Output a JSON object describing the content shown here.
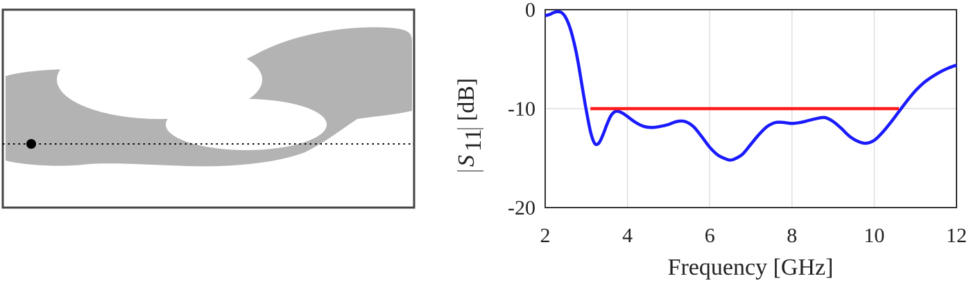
{
  "layout_panel": {
    "description_icon": "antenna-geometry-icon",
    "fill_color": "#b3b3b3",
    "background_color": "#ffffff",
    "border_color": "#444444",
    "feed_point_color": "#000000"
  },
  "chart_data": {
    "type": "line",
    "title": "",
    "xlabel": "Frequency [GHz]",
    "ylabel": {
      "symbol": "S",
      "subscript": "11",
      "unit": "[dB]"
    },
    "xlim": [
      2,
      12
    ],
    "ylim": [
      -20,
      0
    ],
    "x_ticks": [
      "2",
      "4",
      "6",
      "8",
      "10",
      "12"
    ],
    "y_ticks": [
      "0",
      "-10",
      "-20"
    ],
    "grid": true,
    "legend": "none",
    "series": [
      {
        "color": "#1a1aff",
        "x": [
          2.0,
          2.1,
          2.2,
          2.3,
          2.4,
          2.5,
          2.6,
          2.7,
          2.8,
          2.9,
          3.0,
          3.1,
          3.2,
          3.3,
          3.4,
          3.5,
          3.6,
          3.7,
          3.8,
          3.9,
          4.0,
          4.2,
          4.4,
          4.6,
          4.8,
          5.0,
          5.2,
          5.4,
          5.6,
          5.8,
          6.0,
          6.2,
          6.4,
          6.5,
          6.6,
          6.8,
          7.0,
          7.2,
          7.4,
          7.6,
          7.8,
          8.0,
          8.2,
          8.4,
          8.6,
          8.8,
          9.0,
          9.2,
          9.4,
          9.6,
          9.8,
          10.0,
          10.2,
          10.4,
          10.6,
          10.8,
          11.0,
          11.2,
          11.4,
          11.6,
          11.8,
          12.0
        ],
        "y": [
          -0.6,
          -0.5,
          -0.3,
          -0.2,
          -0.3,
          -0.8,
          -1.8,
          -3.3,
          -5.3,
          -7.8,
          -10.2,
          -12.3,
          -13.5,
          -13.5,
          -12.7,
          -11.6,
          -10.7,
          -10.3,
          -10.3,
          -10.5,
          -10.8,
          -11.4,
          -11.8,
          -11.9,
          -11.8,
          -11.6,
          -11.3,
          -11.3,
          -11.8,
          -12.8,
          -13.9,
          -14.7,
          -15.1,
          -15.2,
          -15.1,
          -14.6,
          -13.6,
          -12.6,
          -11.8,
          -11.4,
          -11.4,
          -11.5,
          -11.4,
          -11.2,
          -11.0,
          -10.9,
          -11.3,
          -12.0,
          -12.8,
          -13.3,
          -13.5,
          -13.2,
          -12.4,
          -11.4,
          -10.3,
          -9.2,
          -8.2,
          -7.4,
          -6.8,
          -6.3,
          -5.9,
          -5.6
        ]
      },
      {
        "color": "#ff1a1a",
        "x": [
          3.1,
          10.6
        ],
        "y": [
          -10,
          -10
        ]
      }
    ]
  }
}
